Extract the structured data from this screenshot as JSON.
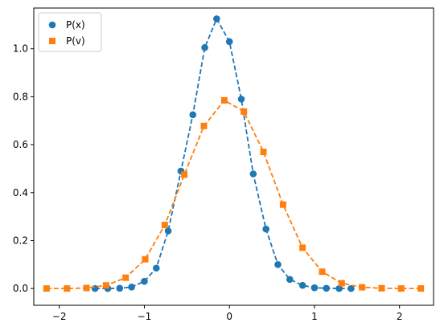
{
  "colors": {
    "px": "#1f77b4",
    "pv": "#ff7f0e"
  },
  "chart_data": {
    "type": "line",
    "title": "",
    "xlabel": "",
    "ylabel": "",
    "xlim": [
      -2.3,
      2.4
    ],
    "ylim": [
      -0.07,
      1.17
    ],
    "grid": false,
    "legend": {
      "placement": "top-left",
      "entries": [
        "P(x)",
        "P(v)"
      ]
    },
    "x_ticks": [
      -2,
      -1,
      0,
      1,
      2
    ],
    "x_tick_labels": [
      "−2",
      "−1",
      "0",
      "1",
      "2"
    ],
    "y_ticks": [
      0.0,
      0.2,
      0.4,
      0.6,
      0.8,
      1.0
    ],
    "y_tick_labels": [
      "0.0",
      "0.2",
      "0.4",
      "0.6",
      "0.8",
      "1.0"
    ],
    "series": [
      {
        "name": "P(x)",
        "marker": "circle",
        "linestyle": "dashed",
        "color": "#1f77b4",
        "x": [
          -1.58,
          -1.43,
          -1.29,
          -1.15,
          -1.0,
          -0.86,
          -0.72,
          -0.57,
          -0.43,
          -0.29,
          -0.15,
          0.0,
          0.14,
          0.28,
          0.43,
          0.57,
          0.71,
          0.86,
          1.0,
          1.14,
          1.29,
          1.43
        ],
        "y": [
          0.0,
          0.0,
          0.001,
          0.006,
          0.03,
          0.085,
          0.24,
          0.49,
          0.725,
          1.005,
          1.125,
          1.03,
          0.79,
          0.478,
          0.248,
          0.1,
          0.038,
          0.013,
          0.003,
          0.001,
          0.0,
          0.0
        ]
      },
      {
        "name": "P(v)",
        "marker": "square",
        "linestyle": "dashed",
        "color": "#ff7f0e",
        "x": [
          -2.15,
          -1.91,
          -1.68,
          -1.45,
          -1.22,
          -0.99,
          -0.76,
          -0.53,
          -0.3,
          -0.06,
          0.17,
          0.4,
          0.63,
          0.86,
          1.09,
          1.32,
          1.56,
          1.79,
          2.02,
          2.25
        ],
        "y": [
          0.0,
          0.0,
          0.002,
          0.013,
          0.045,
          0.122,
          0.265,
          0.475,
          0.678,
          0.785,
          0.738,
          0.57,
          0.35,
          0.17,
          0.07,
          0.022,
          0.005,
          0.001,
          0.0,
          0.0
        ]
      }
    ]
  }
}
